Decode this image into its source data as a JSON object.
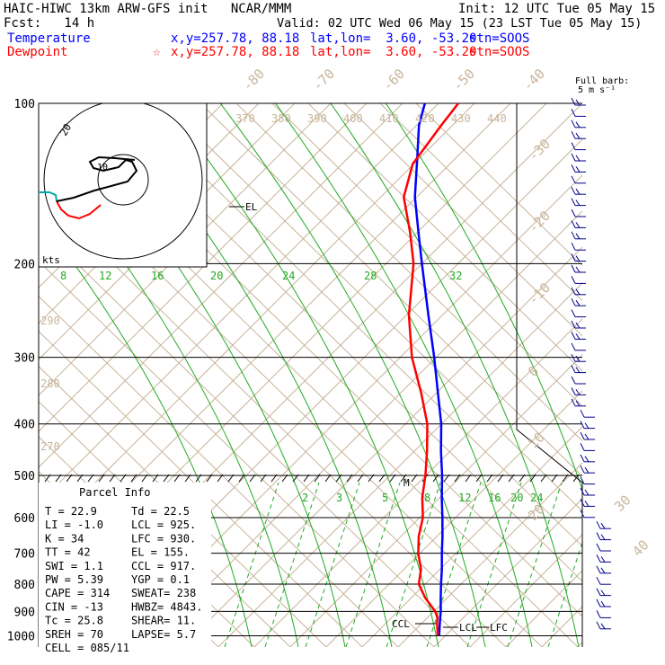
{
  "header": {
    "line1_left": "HAIC-HIWC 13km ARW-GFS init   NCAR/MMM",
    "line1_right": "Init: 12 UTC Tue 05 May 15",
    "line2_left": "Fcst:   14 h",
    "line2_right": "Valid: 02 UTC Wed 06 May 15 (23 LST Tue 05 May 15)",
    "temperature_label": "Temperature",
    "dewpoint_label": "Dewpoint",
    "temp_xy": "x,y=257.78, 88.18",
    "dew_xy": "x,y=257.78, 88.18",
    "dew_star": "☆",
    "temp_latlon": "lat,lon=  3.60, -53.20",
    "dew_latlon": "lat,lon=  3.60, -53.20",
    "temp_stn": "stn=SOOS",
    "dew_stn": "stn=SOOS",
    "colors": {
      "temperature": "#0000ff",
      "dewpoint": "#ff0000",
      "dry_adiabat": "#c8b49a",
      "moist": "#22aa22"
    }
  },
  "barb_legend": {
    "line1": "Full barb:",
    "line2": "5 m s⁻¹"
  },
  "hodograph": {
    "units": "kts",
    "ring_label": "20",
    "center_label": "10"
  },
  "parcel_info": {
    "title": "Parcel Info",
    "rows": [
      [
        "T  =    22.9",
        "Td =  22.5"
      ],
      [
        "LI = -1.0",
        "LCL =  925."
      ],
      [
        "K  =    34",
        "LFC =  930."
      ],
      [
        "TT =    42",
        "EL  =  155."
      ],
      [
        "SWI =   1.1",
        "CCL =  917."
      ],
      [
        "PW =  5.39",
        "YGP =   0.1"
      ],
      [
        "CAPE =  314",
        "SWEAT=  238"
      ],
      [
        "CIN =   -13",
        "HWBZ= 4843."
      ],
      [
        "Tc =  25.8",
        "SHEAR=   11."
      ],
      [
        "SREH =   70",
        "LAPSE=   5.7"
      ],
      [
        "CELL = 085/11",
        ""
      ]
    ]
  },
  "chart_data": {
    "type": "line",
    "title": "Skew-T log-p sounding",
    "y_axis": {
      "name": "pressure (hPa)",
      "ticks": [
        100,
        200,
        300,
        400,
        500,
        600,
        700,
        800,
        900,
        1000
      ]
    },
    "theta_labels": [
      "370",
      "380",
      "390",
      "400",
      "410",
      "420",
      "430",
      "440"
    ],
    "theta_side_labels": [
      "290",
      "280",
      "270"
    ],
    "temp_top_labels": [
      "-80",
      "-70",
      "-60",
      "-50",
      "-40"
    ],
    "temp_right_labels": [
      "-30",
      "-20",
      "-10",
      "0",
      "10",
      "20",
      "30",
      "40"
    ],
    "mixing_ratio_labels_upper": [
      "8",
      "12",
      "16",
      "20",
      "24",
      "28",
      "32"
    ],
    "mixing_ratio_labels_lower": [
      "2",
      "3",
      "5",
      "8",
      "12",
      "16",
      "20",
      "24"
    ],
    "level_labels": {
      "el": "EL",
      "m": "M",
      "ccl": "CCL",
      "lcl": "LCL",
      "lfc": "LFC"
    },
    "series": [
      {
        "name": "Temperature",
        "color": "#0000ff",
        "points": [
          [
            1000,
            23
          ],
          [
            950,
            21
          ],
          [
            925,
            20
          ],
          [
            900,
            19
          ],
          [
            850,
            16.5
          ],
          [
            800,
            14
          ],
          [
            750,
            11.5
          ],
          [
            700,
            8.5
          ],
          [
            650,
            5.5
          ],
          [
            600,
            2
          ],
          [
            550,
            -2
          ],
          [
            500,
            -6
          ],
          [
            450,
            -11
          ],
          [
            400,
            -16
          ],
          [
            350,
            -23
          ],
          [
            300,
            -31
          ],
          [
            250,
            -41
          ],
          [
            200,
            -53
          ],
          [
            175,
            -60
          ],
          [
            150,
            -68
          ],
          [
            125,
            -75
          ],
          [
            110,
            -80
          ],
          [
            100,
            -82
          ]
        ]
      },
      {
        "name": "Dewpoint",
        "color": "#ff0000",
        "points": [
          [
            1000,
            22.5
          ],
          [
            950,
            20
          ],
          [
            925,
            19
          ],
          [
            900,
            17
          ],
          [
            850,
            11
          ],
          [
            800,
            6
          ],
          [
            750,
            4
          ],
          [
            700,
            0
          ],
          [
            650,
            -3
          ],
          [
            600,
            -5
          ],
          [
            550,
            -9
          ],
          [
            500,
            -12
          ],
          [
            450,
            -16
          ],
          [
            400,
            -21
          ],
          [
            350,
            -29
          ],
          [
            300,
            -39
          ],
          [
            250,
            -48
          ],
          [
            200,
            -56
          ],
          [
            175,
            -63
          ],
          [
            150,
            -72
          ],
          [
            130,
            -75
          ],
          [
            110,
            -72
          ],
          [
            100,
            -70
          ]
        ]
      }
    ]
  }
}
